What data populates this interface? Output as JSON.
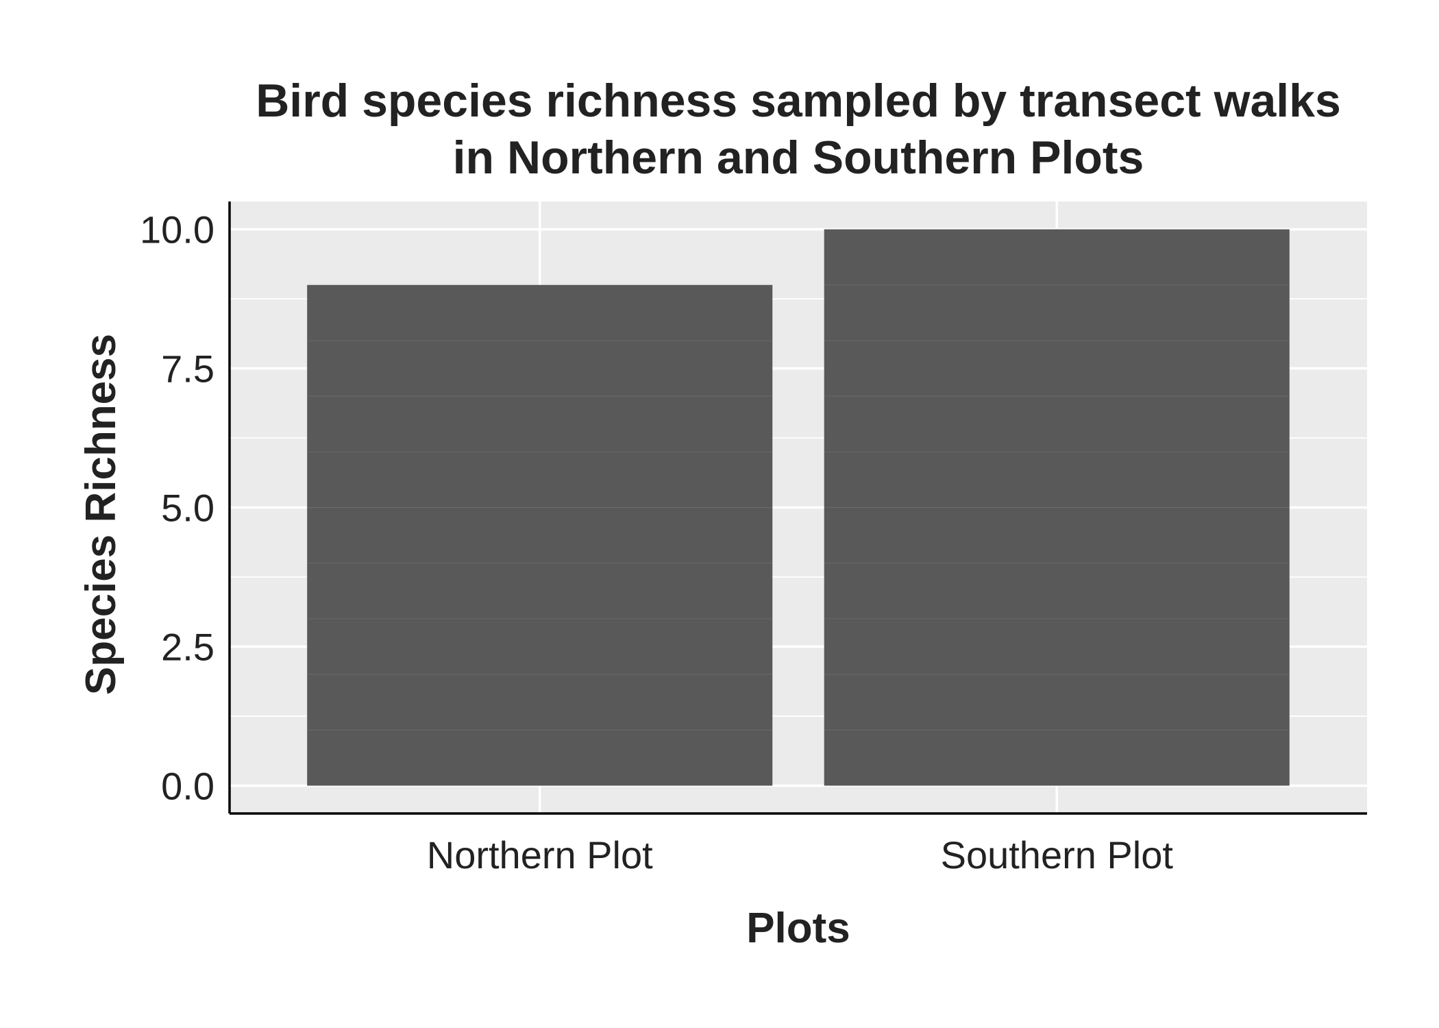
{
  "chart_data": {
    "type": "bar",
    "title": [
      "Bird species richness sampled by transect walks",
      "in Northern and Southern Plots"
    ],
    "xlabel": "Plots",
    "ylabel": "Species Richness",
    "categories": [
      "Northern Plot",
      "Southern Plot"
    ],
    "values": [
      9,
      10
    ],
    "ylim": [
      -0.5,
      10.5
    ],
    "yticks": [
      0,
      2.5,
      5,
      7.5,
      10
    ],
    "ytick_labels": [
      "0.0",
      "2.5",
      "5.0",
      "7.5",
      "10.0"
    ],
    "grid": true,
    "legend": "none",
    "colors": {
      "bar": "#595959",
      "panel_background": "#ebebeb",
      "grid": "#ffffff",
      "axis": "#000000",
      "text": "#222222"
    }
  }
}
